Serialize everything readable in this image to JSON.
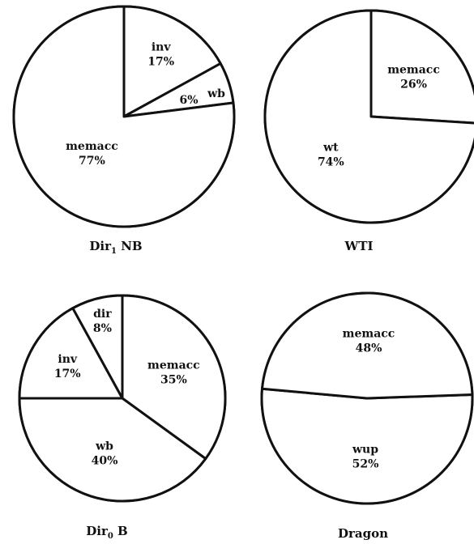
{
  "chart_data": [
    {
      "type": "pie",
      "caption": "Dir",
      "caption_sub": "1",
      "caption_suffix": " NB",
      "slices": [
        {
          "label": "inv",
          "value": 17,
          "value_text": "17%"
        },
        {
          "label": "wb",
          "value": 6,
          "value_text": "6%"
        },
        {
          "label": "memacc",
          "value": 77,
          "value_text": "77%"
        }
      ]
    },
    {
      "type": "pie",
      "caption": "WTI",
      "caption_sub": "",
      "caption_suffix": "",
      "slices": [
        {
          "label": "memacc",
          "value": 26,
          "value_text": "26%"
        },
        {
          "label": "wt",
          "value": 74,
          "value_text": "74%"
        }
      ]
    },
    {
      "type": "pie",
      "caption": "Dir",
      "caption_sub": "0",
      "caption_suffix": " B",
      "slices": [
        {
          "label": "memacc",
          "value": 35,
          "value_text": "35%"
        },
        {
          "label": "wb",
          "value": 40,
          "value_text": "40%"
        },
        {
          "label": "inv",
          "value": 17,
          "value_text": "17%"
        },
        {
          "label": "dir",
          "value": 8,
          "value_text": "8%"
        }
      ]
    },
    {
      "type": "pie",
      "caption": "Dragon",
      "caption_sub": "",
      "caption_suffix": "",
      "slices": [
        {
          "label": "wup",
          "value": 52,
          "value_text": "52%"
        },
        {
          "label": "memacc",
          "value": 48,
          "value_text": "48%"
        }
      ]
    }
  ]
}
